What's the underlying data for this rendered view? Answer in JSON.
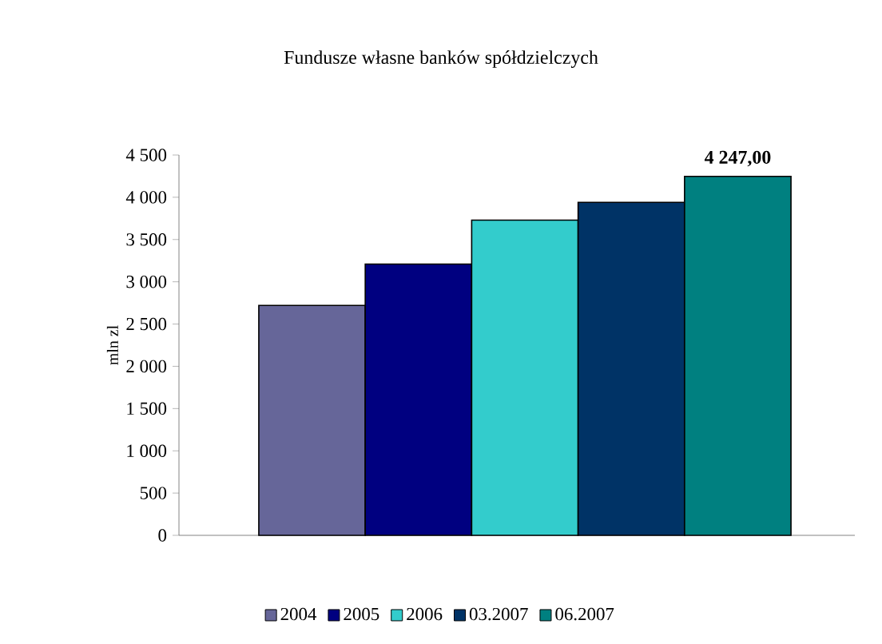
{
  "chart_data": {
    "type": "bar",
    "title": "Fundusze własne banków spółdzielczych",
    "ylabel": "mln zl",
    "categories": [
      null
    ],
    "series": [
      {
        "name": "2004",
        "color": "#666699",
        "values": [
          2720
        ]
      },
      {
        "name": "2005",
        "color": "#000080",
        "values": [
          3210
        ]
      },
      {
        "name": "2006",
        "color": "#33cccc",
        "values": [
          3730
        ]
      },
      {
        "name": "03.2007",
        "color": "#003366",
        "values": [
          3940
        ]
      },
      {
        "name": "06.2007",
        "color": "#008080",
        "values": [
          4247
        ],
        "value_labels": [
          "4 247,00"
        ]
      }
    ],
    "ylim": [
      0,
      4500
    ],
    "yticks": [
      0,
      500,
      {
        "value": 1000,
        "label": "1 000"
      },
      {
        "value": 1500,
        "label": "1 500"
      },
      {
        "value": 2000,
        "label": "2 000"
      },
      {
        "value": 2500,
        "label": "2 500"
      },
      {
        "value": 3000,
        "label": "3 000"
      },
      {
        "value": 3500,
        "label": "3 500"
      },
      {
        "value": 4000,
        "label": "4 000"
      },
      {
        "value": 4500,
        "label": "4 500"
      }
    ],
    "legend": "bottom",
    "tick_labels": "y"
  }
}
